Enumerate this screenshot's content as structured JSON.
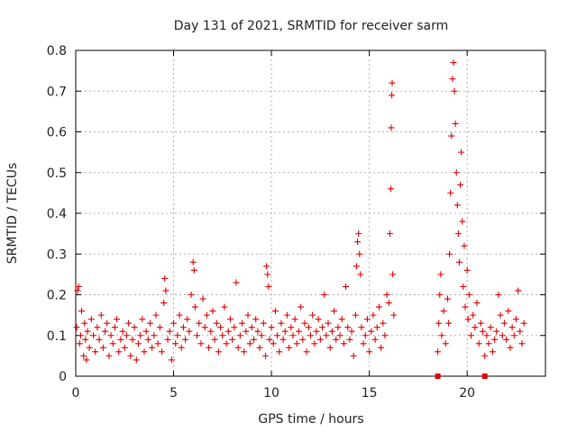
{
  "chart_data": {
    "type": "scatter",
    "title": "Day 131 of 2021, SRMTID for receiver sarm",
    "xlabel": "GPS time / hours",
    "ylabel": "SRMTID / TECUs",
    "xlim": [
      0,
      24
    ],
    "ylim": [
      0,
      0.8
    ],
    "x_ticks": [
      0,
      5,
      10,
      15,
      20
    ],
    "x_tick_labels": [
      "0",
      "5",
      "10",
      "15",
      "20"
    ],
    "y_ticks": [
      0,
      0.1,
      0.2,
      0.3,
      0.4,
      0.5,
      0.6,
      0.7,
      0.8
    ],
    "y_tick_labels": [
      "0",
      "0.1",
      "0.2",
      "0.3",
      "0.4",
      "0.5",
      "0.6",
      "0.7",
      "0.8"
    ],
    "grid": true,
    "marker": "plus",
    "colors": {
      "series": "#e00000",
      "grid": "#b0b0b0",
      "axis": "#000000"
    },
    "series": [
      {
        "name": "SRMTID",
        "points": [
          [
            0.05,
            0.12
          ],
          [
            0.1,
            0.21
          ],
          [
            0.15,
            0.22
          ],
          [
            0.2,
            0.08
          ],
          [
            0.25,
            0.1
          ],
          [
            0.3,
            0.16
          ],
          [
            0.4,
            0.05
          ],
          [
            0.45,
            0.13
          ],
          [
            0.5,
            0.09
          ],
          [
            0.55,
            0.04
          ],
          [
            0.6,
            0.11
          ],
          [
            0.7,
            0.07
          ],
          [
            0.8,
            0.14
          ],
          [
            0.9,
            0.1
          ],
          [
            1.0,
            0.06
          ],
          [
            1.1,
            0.12
          ],
          [
            1.2,
            0.09
          ],
          [
            1.3,
            0.15
          ],
          [
            1.4,
            0.07
          ],
          [
            1.5,
            0.11
          ],
          [
            1.6,
            0.13
          ],
          [
            1.7,
            0.05
          ],
          [
            1.8,
            0.1
          ],
          [
            1.9,
            0.08
          ],
          [
            2.0,
            0.12
          ],
          [
            2.1,
            0.14
          ],
          [
            2.2,
            0.06
          ],
          [
            2.3,
            0.09
          ],
          [
            2.4,
            0.11
          ],
          [
            2.5,
            0.07
          ],
          [
            2.6,
            0.1
          ],
          [
            2.7,
            0.13
          ],
          [
            2.8,
            0.05
          ],
          [
            2.9,
            0.09
          ],
          [
            3.0,
            0.12
          ],
          [
            3.1,
            0.04
          ],
          [
            3.2,
            0.08
          ],
          [
            3.3,
            0.1
          ],
          [
            3.4,
            0.14
          ],
          [
            3.5,
            0.06
          ],
          [
            3.6,
            0.11
          ],
          [
            3.7,
            0.09
          ],
          [
            3.8,
            0.13
          ],
          [
            3.9,
            0.07
          ],
          [
            4.0,
            0.1
          ],
          [
            4.1,
            0.15
          ],
          [
            4.2,
            0.08
          ],
          [
            4.3,
            0.12
          ],
          [
            4.4,
            0.06
          ],
          [
            4.5,
            0.18
          ],
          [
            4.55,
            0.24
          ],
          [
            4.6,
            0.21
          ],
          [
            4.7,
            0.09
          ],
          [
            4.8,
            0.11
          ],
          [
            4.9,
            0.04
          ],
          [
            5.0,
            0.13
          ],
          [
            5.1,
            0.08
          ],
          [
            5.2,
            0.1
          ],
          [
            5.3,
            0.15
          ],
          [
            5.4,
            0.07
          ],
          [
            5.5,
            0.12
          ],
          [
            5.6,
            0.09
          ],
          [
            5.7,
            0.14
          ],
          [
            5.8,
            0.11
          ],
          [
            5.9,
            0.2
          ],
          [
            6.0,
            0.28
          ],
          [
            6.05,
            0.26
          ],
          [
            6.1,
            0.17
          ],
          [
            6.2,
            0.1
          ],
          [
            6.3,
            0.13
          ],
          [
            6.4,
            0.08
          ],
          [
            6.5,
            0.19
          ],
          [
            6.6,
            0.12
          ],
          [
            6.7,
            0.15
          ],
          [
            6.8,
            0.07
          ],
          [
            6.9,
            0.11
          ],
          [
            7.0,
            0.16
          ],
          [
            7.1,
            0.09
          ],
          [
            7.2,
            0.13
          ],
          [
            7.3,
            0.06
          ],
          [
            7.4,
            0.12
          ],
          [
            7.5,
            0.1
          ],
          [
            7.6,
            0.17
          ],
          [
            7.7,
            0.08
          ],
          [
            7.8,
            0.11
          ],
          [
            7.9,
            0.14
          ],
          [
            8.0,
            0.09
          ],
          [
            8.1,
            0.12
          ],
          [
            8.2,
            0.23
          ],
          [
            8.3,
            0.07
          ],
          [
            8.4,
            0.1
          ],
          [
            8.5,
            0.13
          ],
          [
            8.6,
            0.06
          ],
          [
            8.7,
            0.11
          ],
          [
            8.8,
            0.15
          ],
          [
            8.9,
            0.08
          ],
          [
            9.0,
            0.12
          ],
          [
            9.1,
            0.09
          ],
          [
            9.2,
            0.14
          ],
          [
            9.3,
            0.11
          ],
          [
            9.4,
            0.07
          ],
          [
            9.5,
            0.1
          ],
          [
            9.6,
            0.13
          ],
          [
            9.7,
            0.05
          ],
          [
            9.75,
            0.27
          ],
          [
            9.8,
            0.25
          ],
          [
            9.85,
            0.22
          ],
          [
            9.9,
            0.09
          ],
          [
            10.0,
            0.12
          ],
          [
            10.1,
            0.08
          ],
          [
            10.2,
            0.16
          ],
          [
            10.3,
            0.1
          ],
          [
            10.4,
            0.06
          ],
          [
            10.5,
            0.13
          ],
          [
            10.6,
            0.09
          ],
          [
            10.7,
            0.11
          ],
          [
            10.8,
            0.15
          ],
          [
            10.9,
            0.07
          ],
          [
            11.0,
            0.12
          ],
          [
            11.1,
            0.1
          ],
          [
            11.2,
            0.14
          ],
          [
            11.3,
            0.08
          ],
          [
            11.4,
            0.11
          ],
          [
            11.5,
            0.17
          ],
          [
            11.6,
            0.09
          ],
          [
            11.7,
            0.13
          ],
          [
            11.8,
            0.06
          ],
          [
            11.9,
            0.12
          ],
          [
            12.0,
            0.1
          ],
          [
            12.1,
            0.15
          ],
          [
            12.2,
            0.08
          ],
          [
            12.3,
            0.11
          ],
          [
            12.4,
            0.14
          ],
          [
            12.5,
            0.09
          ],
          [
            12.6,
            0.12
          ],
          [
            12.7,
            0.2
          ],
          [
            12.8,
            0.1
          ],
          [
            12.9,
            0.13
          ],
          [
            13.0,
            0.07
          ],
          [
            13.1,
            0.11
          ],
          [
            13.2,
            0.16
          ],
          [
            13.3,
            0.09
          ],
          [
            13.4,
            0.12
          ],
          [
            13.5,
            0.1
          ],
          [
            13.6,
            0.14
          ],
          [
            13.7,
            0.08
          ],
          [
            13.8,
            0.22
          ],
          [
            13.9,
            0.12
          ],
          [
            14.0,
            0.09
          ],
          [
            14.1,
            0.11
          ],
          [
            14.2,
            0.05
          ],
          [
            14.3,
            0.15
          ],
          [
            14.35,
            0.27
          ],
          [
            14.4,
            0.33
          ],
          [
            14.45,
            0.35
          ],
          [
            14.5,
            0.3
          ],
          [
            14.55,
            0.25
          ],
          [
            14.6,
            0.12
          ],
          [
            14.7,
            0.08
          ],
          [
            14.8,
            0.1
          ],
          [
            14.9,
            0.14
          ],
          [
            15.0,
            0.06
          ],
          [
            15.1,
            0.11
          ],
          [
            15.2,
            0.15
          ],
          [
            15.3,
            0.09
          ],
          [
            15.4,
            0.12
          ],
          [
            15.5,
            0.17
          ],
          [
            15.6,
            0.07
          ],
          [
            15.7,
            0.13
          ],
          [
            15.8,
            0.1
          ],
          [
            15.9,
            0.2
          ],
          [
            16.0,
            0.18
          ],
          [
            16.05,
            0.35
          ],
          [
            16.1,
            0.46
          ],
          [
            16.12,
            0.61
          ],
          [
            16.15,
            0.69
          ],
          [
            16.17,
            0.72
          ],
          [
            16.2,
            0.25
          ],
          [
            16.25,
            0.15
          ],
          [
            18.5,
            0.06
          ],
          [
            18.55,
            0.13
          ],
          [
            18.6,
            0.2
          ],
          [
            18.65,
            0.25
          ],
          [
            18.7,
            0.1
          ],
          [
            18.8,
            0.16
          ],
          [
            18.9,
            0.08
          ],
          [
            19.0,
            0.19
          ],
          [
            19.05,
            0.13
          ],
          [
            19.1,
            0.3
          ],
          [
            19.15,
            0.45
          ],
          [
            19.2,
            0.59
          ],
          [
            19.25,
            0.73
          ],
          [
            19.3,
            0.77
          ],
          [
            19.35,
            0.7
          ],
          [
            19.4,
            0.62
          ],
          [
            19.45,
            0.5
          ],
          [
            19.5,
            0.42
          ],
          [
            19.55,
            0.35
          ],
          [
            19.6,
            0.28
          ],
          [
            19.65,
            0.47
          ],
          [
            19.7,
            0.55
          ],
          [
            19.75,
            0.38
          ],
          [
            19.8,
            0.22
          ],
          [
            19.85,
            0.32
          ],
          [
            19.9,
            0.17
          ],
          [
            20.0,
            0.26
          ],
          [
            20.05,
            0.14
          ],
          [
            20.1,
            0.2
          ],
          [
            20.2,
            0.1
          ],
          [
            20.3,
            0.15
          ],
          [
            20.4,
            0.12
          ],
          [
            20.5,
            0.18
          ],
          [
            20.6,
            0.08
          ],
          [
            20.7,
            0.13
          ],
          [
            20.8,
            0.11
          ],
          [
            20.9,
            0.05
          ],
          [
            21.0,
            0.1
          ],
          [
            21.1,
            0.08
          ],
          [
            21.2,
            0.12
          ],
          [
            21.3,
            0.06
          ],
          [
            21.4,
            0.09
          ],
          [
            21.5,
            0.11
          ],
          [
            21.6,
            0.2
          ],
          [
            21.7,
            0.15
          ],
          [
            21.8,
            0.1
          ],
          [
            21.9,
            0.13
          ],
          [
            22.0,
            0.09
          ],
          [
            22.1,
            0.16
          ],
          [
            22.2,
            0.07
          ],
          [
            22.3,
            0.12
          ],
          [
            22.4,
            0.1
          ],
          [
            22.5,
            0.14
          ],
          [
            22.6,
            0.21
          ],
          [
            22.7,
            0.11
          ],
          [
            22.8,
            0.08
          ],
          [
            22.9,
            0.13
          ]
        ]
      },
      {
        "name": "gap markers",
        "marker": "square",
        "points": [
          [
            18.5,
            0
          ],
          [
            20.9,
            0
          ]
        ]
      }
    ]
  }
}
